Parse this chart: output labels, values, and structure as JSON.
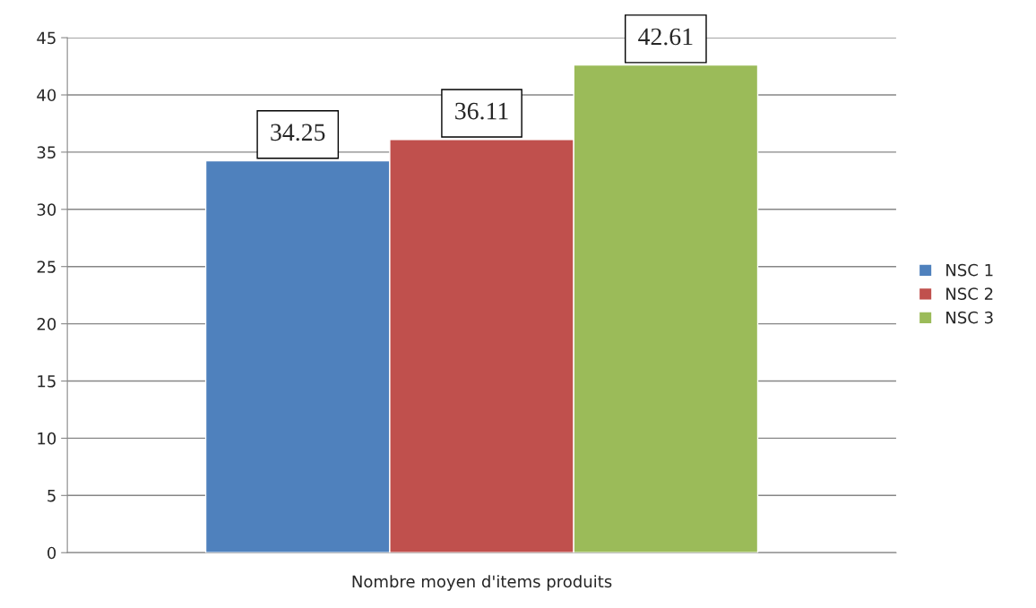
{
  "chart_data": {
    "type": "bar",
    "xlabel": null,
    "categories": [
      "Nombre moyen d'items produits"
    ],
    "series": [
      {
        "name": "NSC 1",
        "color": "#4f81bd",
        "values": [
          34.25
        ]
      },
      {
        "name": "NSC 2",
        "color": "#c0504d",
        "values": [
          36.11
        ]
      },
      {
        "name": "NSC 3",
        "color": "#9bbb59",
        "values": [
          42.61
        ]
      }
    ],
    "ylim": [
      0,
      45
    ],
    "yticks": [
      0,
      5,
      10,
      15,
      20,
      25,
      30,
      35,
      40,
      45
    ],
    "grid": "y",
    "legend": "right",
    "data_labels": true
  }
}
